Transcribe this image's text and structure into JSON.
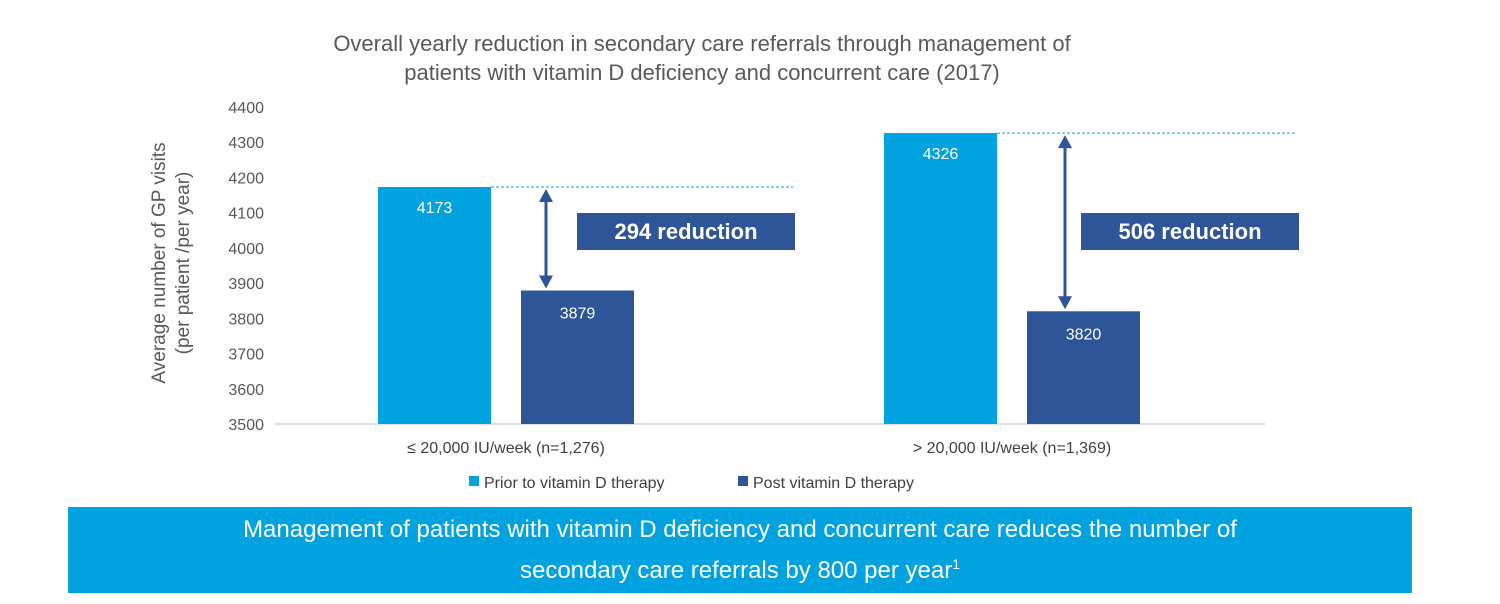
{
  "chart_data": {
    "type": "bar",
    "title_lines": [
      "Overall yearly reduction in secondary care referrals through management of",
      "patients with vitamin D deficiency and concurrent care (2017)"
    ],
    "ylabel_lines": [
      "Average number of GP visits",
      "(per patient /per year)"
    ],
    "ylim": [
      3500,
      4400
    ],
    "yticks": [
      3500,
      3600,
      3700,
      3800,
      3900,
      4000,
      4100,
      4200,
      4300,
      4400
    ],
    "categories": [
      "≤ 20,000 IU/week (n=1,276)",
      "> 20,000 IU/week (n=1,369)"
    ],
    "series": [
      {
        "name": "Prior to vitamin D therapy",
        "values": [
          4173,
          4326
        ],
        "color": "#00a3e0"
      },
      {
        "name": "Post vitamin D therapy",
        "values": [
          3879,
          3820
        ],
        "color": "#2e5597"
      }
    ],
    "annotations": [
      "294 reduction",
      "506 reduction"
    ],
    "annotation_color": "#2e5597",
    "legend_position": "bottom",
    "grid": false
  },
  "banner": {
    "line1": "Management of patients with vitamin D deficiency and concurrent care reduces the number of",
    "line2": "secondary care referrals by 800 per year",
    "footnote": "1"
  }
}
